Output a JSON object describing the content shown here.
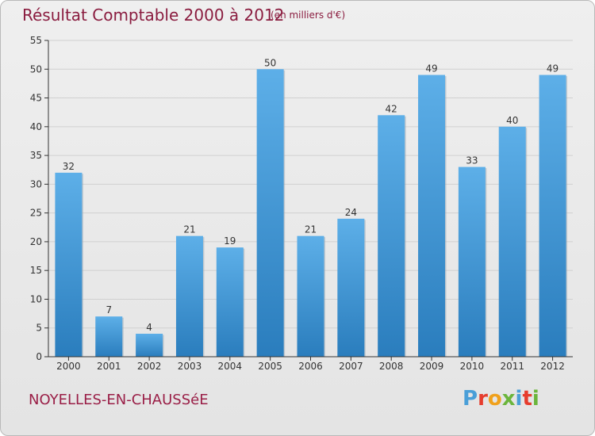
{
  "title": "Résultat Comptable 2000 à 2012",
  "subtitle": "(en milliers d'€)",
  "location": "NOYELLES-EN-CHAUSSéE",
  "brand": {
    "text": "Proxiti",
    "colors": [
      "#4a9fd8",
      "#e63d2e",
      "#f0a11c",
      "#6bb53c",
      "#4a9fd8",
      "#e63d2e",
      "#6bb53c"
    ]
  },
  "colors": {
    "bar_top": "#5dafe8",
    "bar_bottom": "#2a7dbd",
    "title": "#8a1c3f",
    "axis": "#333333",
    "grid": "#d0d0d0"
  },
  "chart_data": {
    "type": "bar",
    "categories": [
      "2000",
      "2001",
      "2002",
      "2003",
      "2004",
      "2005",
      "2006",
      "2007",
      "2008",
      "2009",
      "2010",
      "2011",
      "2012"
    ],
    "values": [
      32,
      7,
      4,
      21,
      19,
      50,
      21,
      24,
      42,
      49,
      33,
      40,
      49
    ],
    "data_labels": [
      "32",
      "7",
      "4",
      "21",
      "19",
      "50",
      "21",
      "24",
      "42",
      "49",
      "33",
      "40",
      "49"
    ],
    "yticks": [
      0,
      5,
      10,
      15,
      20,
      25,
      30,
      35,
      40,
      45,
      50,
      55
    ],
    "ytick_labels": [
      "0",
      "5",
      "10",
      "15",
      "20",
      "25",
      "30",
      "35",
      "40",
      "45",
      "50",
      "55"
    ],
    "ylim": [
      0,
      55
    ],
    "grid": true,
    "legend": "none"
  }
}
